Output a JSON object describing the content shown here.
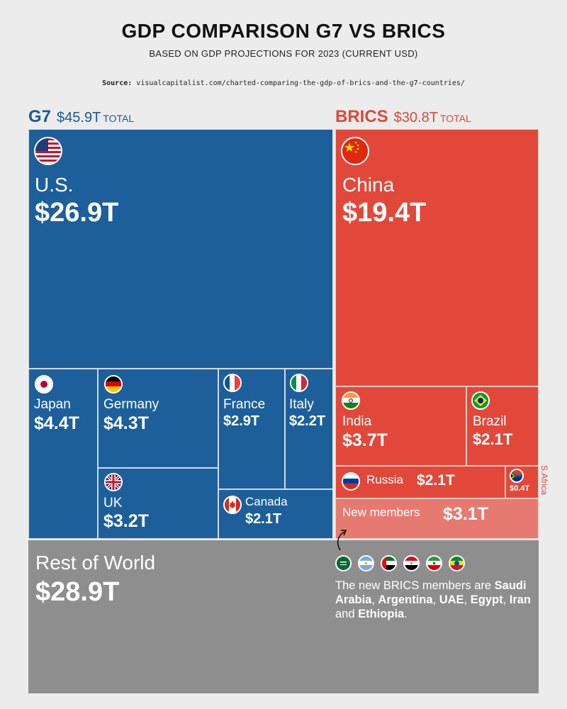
{
  "header": {
    "title": "GDP COMPARISON G7 VS BRICS",
    "subtitle": "BASED ON GDP PROJECTIONS FOR 2023 (CURRENT USD)",
    "source_label": "Source:",
    "source_url": "visualcapitalist.com/charted-comparing-the-gdp-of-brics-and-the-g7-countries/"
  },
  "chart_data": {
    "type": "treemap",
    "title": "GDP COMPARISON G7 VS BRICS",
    "subtitle": "BASED ON GDP PROJECTIONS FOR 2023 (CURRENT USD)",
    "unit": "T",
    "groups": [
      {
        "key": "g7",
        "name": "G7",
        "total": 45.9,
        "total_label": "$45.9T",
        "total_suffix": "TOTAL",
        "items": [
          {
            "key": "us",
            "name": "U.S.",
            "value": 26.9,
            "label": "$26.9T"
          },
          {
            "key": "japan",
            "name": "Japan",
            "value": 4.4,
            "label": "$4.4T"
          },
          {
            "key": "germany",
            "name": "Germany",
            "value": 4.3,
            "label": "$4.3T"
          },
          {
            "key": "france",
            "name": "France",
            "value": 2.9,
            "label": "$2.9T"
          },
          {
            "key": "italy",
            "name": "Italy",
            "value": 2.2,
            "label": "$2.2T"
          },
          {
            "key": "uk",
            "name": "UK",
            "value": 3.2,
            "label": "$3.2T"
          },
          {
            "key": "canada",
            "name": "Canada",
            "value": 2.1,
            "label": "$2.1T"
          }
        ]
      },
      {
        "key": "brics",
        "name": "BRICS",
        "total": 30.8,
        "total_label": "$30.8T",
        "total_suffix": "TOTAL",
        "items": [
          {
            "key": "china",
            "name": "China",
            "value": 19.4,
            "label": "$19.4T"
          },
          {
            "key": "india",
            "name": "India",
            "value": 3.7,
            "label": "$3.7T"
          },
          {
            "key": "brazil",
            "name": "Brazil",
            "value": 2.1,
            "label": "$2.1T"
          },
          {
            "key": "russia",
            "name": "Russia",
            "value": 2.1,
            "label": "$2.1T"
          },
          {
            "key": "safrica",
            "name": "S.Africa",
            "value": 0.4,
            "label": "$0.4T"
          },
          {
            "key": "newmembers",
            "name": "New members",
            "value": 3.1,
            "label": "$3.1T"
          }
        ]
      },
      {
        "key": "row",
        "name": "Rest of World",
        "value": 28.9,
        "label": "$28.9T"
      }
    ],
    "new_members": [
      "Saudi Arabia",
      "Argentina",
      "UAE",
      "Egypt",
      "Iran",
      "Ethiopia"
    ]
  },
  "note": {
    "prefix": "The new BRICS members are ",
    "m1": "Saudi Arabia",
    "sep1": ", ",
    "m2": "Argentina",
    "sep2": ", ",
    "m3": "UAE",
    "sep3": ", ",
    "m4": "Egypt",
    "sep4": ", ",
    "m5": "Iran",
    "sep5": " and ",
    "m6": "Ethiopia",
    "end": "."
  },
  "colors": {
    "g7": "#1d5f9a",
    "brics": "#e2483a",
    "new_members": "#e77a70",
    "rest_of_world": "#8e8e8e",
    "background": "#ececec"
  },
  "icons": {
    "us": "us-flag-icon",
    "japan": "japan-flag-icon",
    "germany": "germany-flag-icon",
    "france": "france-flag-icon",
    "italy": "italy-flag-icon",
    "uk": "uk-flag-icon",
    "canada": "canada-flag-icon",
    "china": "china-flag-icon",
    "india": "india-flag-icon",
    "brazil": "brazil-flag-icon",
    "russia": "russia-flag-icon",
    "safrica": "south-africa-flag-icon"
  }
}
